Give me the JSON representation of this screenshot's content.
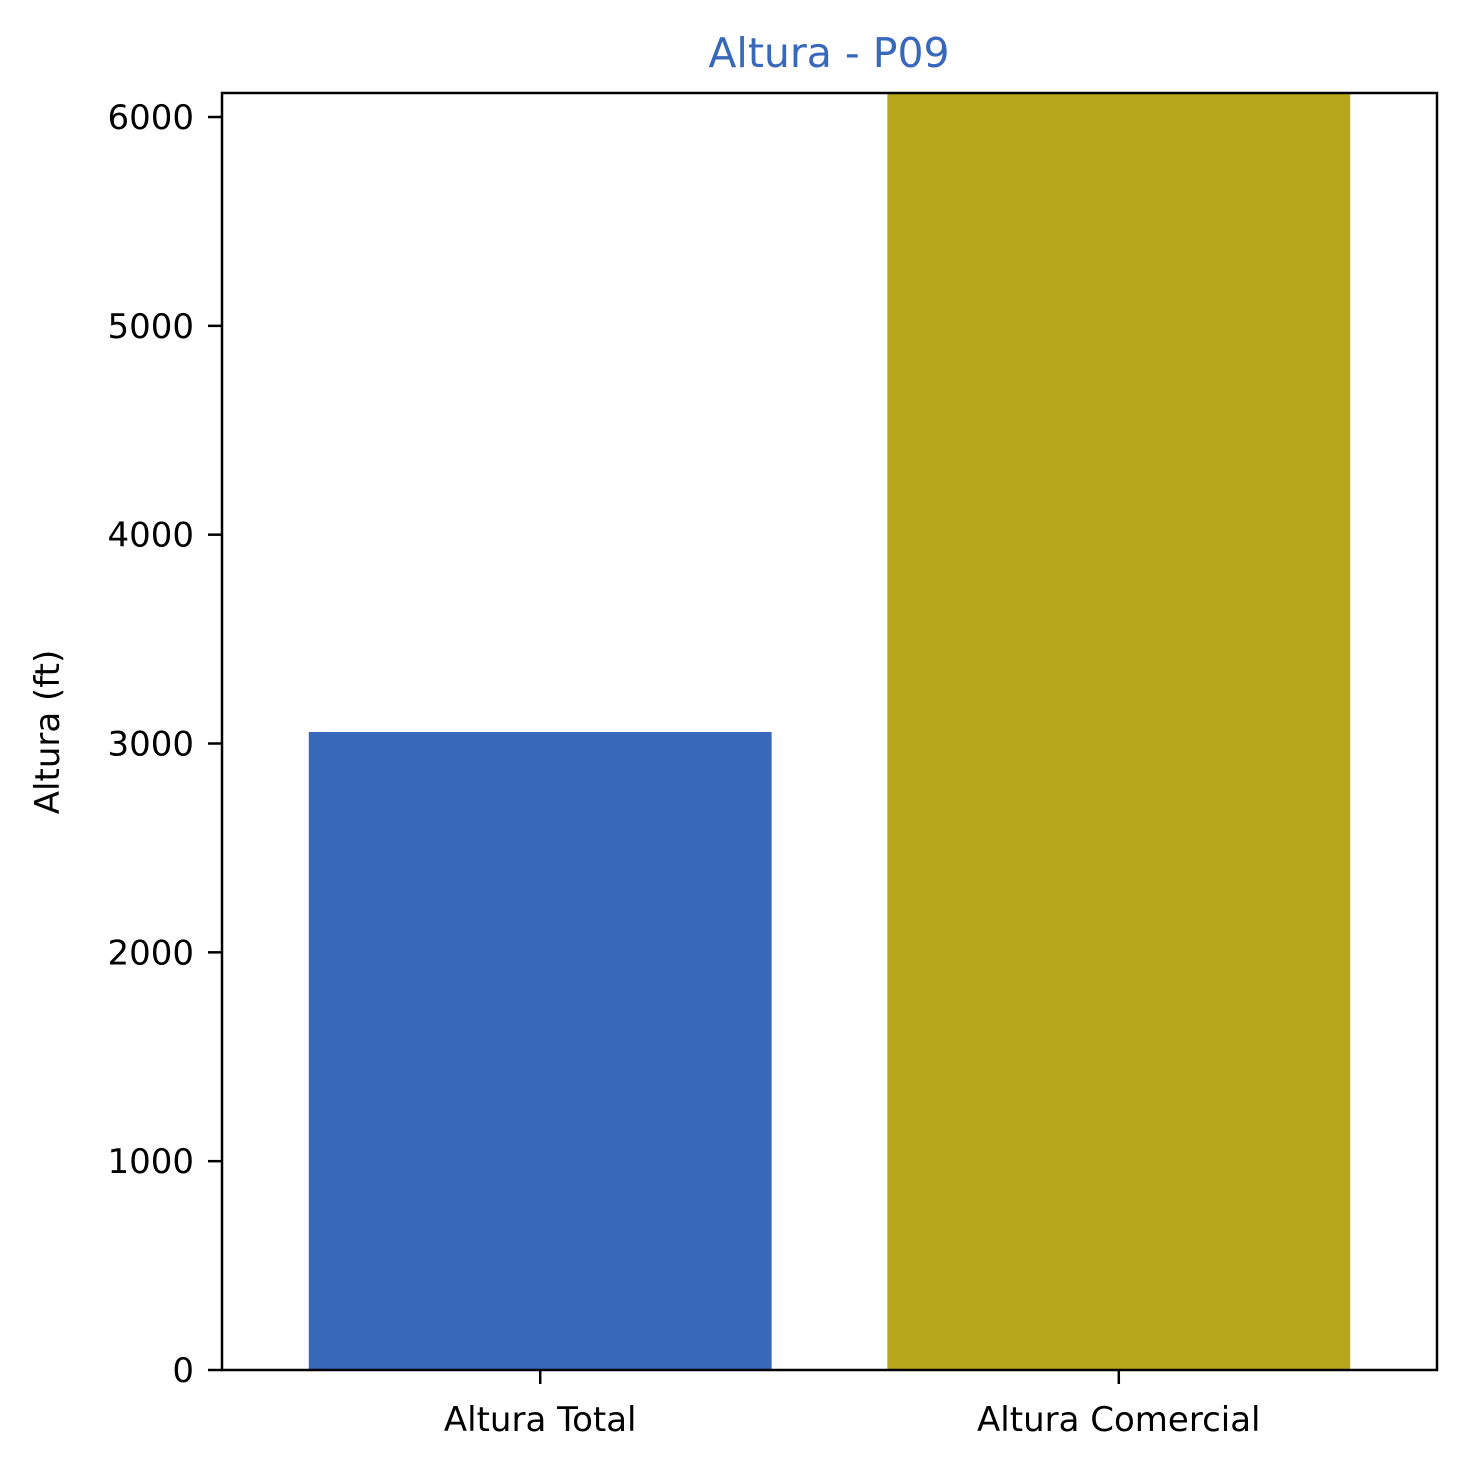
{
  "chart_data": {
    "type": "bar",
    "title": "Altura - P09",
    "title_color": "#3868ba",
    "xlabel": "",
    "ylabel": "Altura (ft)",
    "categories": [
      "Altura Total",
      "Altura Comercial"
    ],
    "values": [
      3055,
      6115
    ],
    "colors": [
      "#3868ba",
      "#b8a61d"
    ],
    "ylim": [
      0,
      6115
    ],
    "yticks": [
      0,
      1000,
      2000,
      3000,
      4000,
      5000,
      6000
    ],
    "ytick_labels": [
      "0",
      "1000",
      "2000",
      "3000",
      "4000",
      "5000",
      "6000"
    ],
    "grid": false,
    "legend": "none"
  }
}
